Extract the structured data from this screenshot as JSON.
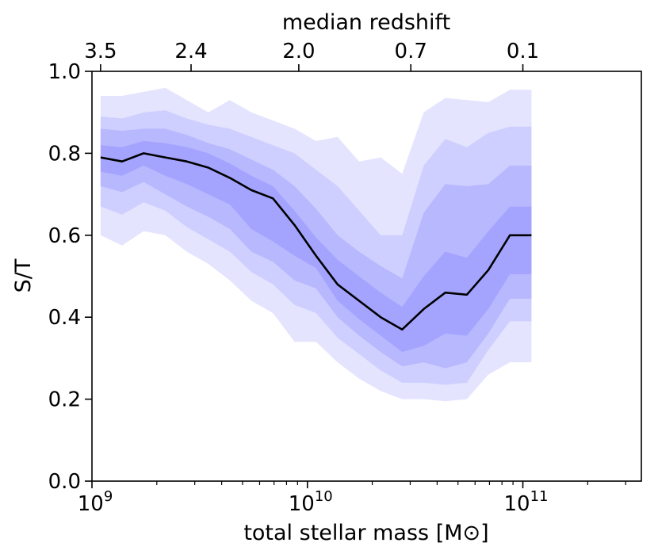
{
  "chart_data": {
    "type": "area",
    "title": "",
    "xlabel": "total stellar mass [M⊙]",
    "ylabel": "S/T",
    "top_xlabel": "median redshift",
    "xscale": "log",
    "xlim_log10": [
      9.0,
      11.55
    ],
    "ylim": [
      0.0,
      1.0
    ],
    "x_ticks": [
      {
        "base": "10",
        "exp": "9",
        "log10": 9
      },
      {
        "base": "10",
        "exp": "10",
        "log10": 10
      },
      {
        "base": "10",
        "exp": "11",
        "log10": 11
      }
    ],
    "y_ticks": [
      {
        "label": "0.0",
        "value": 0.0
      },
      {
        "label": "0.2",
        "value": 0.2
      },
      {
        "label": "0.4",
        "value": 0.4
      },
      {
        "label": "0.6",
        "value": 0.6
      },
      {
        "label": "0.8",
        "value": 0.8
      },
      {
        "label": "1.0",
        "value": 1.0
      }
    ],
    "top_ticks": [
      {
        "label": "3.5",
        "log10": 9.04
      },
      {
        "label": "2.4",
        "log10": 9.46
      },
      {
        "label": "2.0",
        "log10": 9.96
      },
      {
        "label": "0.7",
        "log10": 10.48
      },
      {
        "label": "0.1",
        "log10": 11.0
      }
    ],
    "band_colors": [
      "#e4e4ff",
      "#cfcfff",
      "#b8b8ff",
      "#a4a4ff"
    ],
    "line_color": "#000000",
    "x_log10": [
      9.04,
      9.14,
      9.24,
      9.34,
      9.44,
      9.54,
      9.64,
      9.74,
      9.84,
      9.94,
      10.04,
      10.14,
      10.24,
      10.34,
      10.44,
      10.54,
      10.64,
      10.74,
      10.84,
      10.94,
      11.04
    ],
    "median": [
      0.79,
      0.78,
      0.8,
      0.79,
      0.78,
      0.765,
      0.74,
      0.71,
      0.69,
      0.625,
      0.55,
      0.48,
      0.44,
      0.4,
      0.37,
      0.42,
      0.46,
      0.455,
      0.515,
      0.6,
      0.6
    ],
    "bands": [
      {
        "name": "outer",
        "upper": [
          0.94,
          0.94,
          0.95,
          0.96,
          0.93,
          0.9,
          0.93,
          0.9,
          0.88,
          0.86,
          0.83,
          0.84,
          0.78,
          0.79,
          0.75,
          0.9,
          0.935,
          0.93,
          0.925,
          0.955,
          0.955
        ],
        "lower": [
          0.6,
          0.575,
          0.61,
          0.6,
          0.56,
          0.53,
          0.49,
          0.44,
          0.41,
          0.34,
          0.34,
          0.29,
          0.25,
          0.22,
          0.2,
          0.2,
          0.195,
          0.2,
          0.26,
          0.29,
          0.29
        ]
      },
      {
        "name": "mid-outer",
        "upper": [
          0.89,
          0.885,
          0.9,
          0.905,
          0.885,
          0.87,
          0.86,
          0.84,
          0.82,
          0.8,
          0.76,
          0.72,
          0.66,
          0.6,
          0.6,
          0.77,
          0.835,
          0.815,
          0.85,
          0.865,
          0.865
        ],
        "lower": [
          0.67,
          0.65,
          0.68,
          0.66,
          0.62,
          0.59,
          0.56,
          0.51,
          0.48,
          0.43,
          0.41,
          0.35,
          0.31,
          0.27,
          0.24,
          0.24,
          0.235,
          0.24,
          0.32,
          0.39,
          0.39
        ]
      },
      {
        "name": "inner",
        "upper": [
          0.86,
          0.855,
          0.86,
          0.86,
          0.845,
          0.825,
          0.81,
          0.785,
          0.76,
          0.72,
          0.665,
          0.6,
          0.56,
          0.525,
          0.495,
          0.655,
          0.725,
          0.72,
          0.725,
          0.77,
          0.77
        ],
        "lower": [
          0.72,
          0.705,
          0.73,
          0.7,
          0.67,
          0.645,
          0.615,
          0.56,
          0.535,
          0.49,
          0.47,
          0.4,
          0.355,
          0.315,
          0.28,
          0.29,
          0.275,
          0.29,
          0.36,
          0.445,
          0.445
        ]
      },
      {
        "name": "core",
        "upper": [
          0.82,
          0.815,
          0.83,
          0.825,
          0.815,
          0.8,
          0.775,
          0.745,
          0.72,
          0.66,
          0.595,
          0.54,
          0.5,
          0.46,
          0.425,
          0.5,
          0.56,
          0.545,
          0.61,
          0.67,
          0.67
        ],
        "lower": [
          0.755,
          0.745,
          0.77,
          0.745,
          0.725,
          0.7,
          0.675,
          0.615,
          0.585,
          0.55,
          0.52,
          0.44,
          0.395,
          0.355,
          0.315,
          0.33,
          0.36,
          0.355,
          0.42,
          0.505,
          0.505
        ]
      }
    ]
  }
}
